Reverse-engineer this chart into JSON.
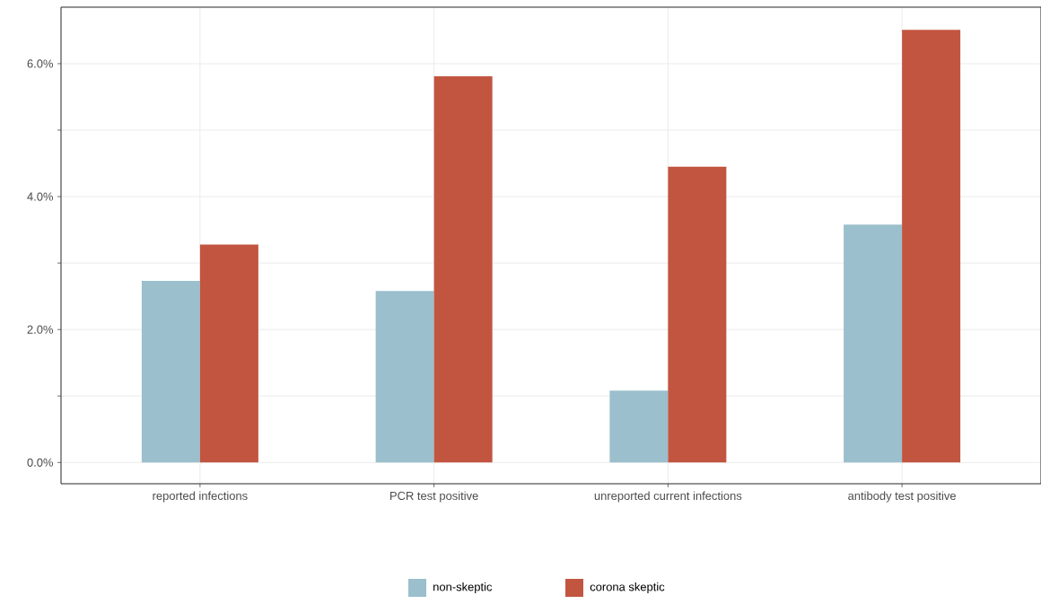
{
  "chart_data": {
    "type": "bar",
    "categories": [
      "reported infections",
      "PCR test positive",
      "unreported current infections",
      "antibody test positive"
    ],
    "series": [
      {
        "name": "non-skeptic",
        "color": "#9bbfcc",
        "values": [
          2.73,
          2.58,
          1.08,
          3.58
        ]
      },
      {
        "name": "corona skeptic",
        "color": "#c25540",
        "values": [
          3.28,
          5.81,
          4.45,
          6.51
        ]
      }
    ],
    "ylim": [
      -0.32,
      6.85
    ],
    "yticks": [
      {
        "value": 0,
        "label": "0.0%"
      },
      {
        "value": 1,
        "label": null
      },
      {
        "value": 2,
        "label": "2.0%"
      },
      {
        "value": 3,
        "label": null
      },
      {
        "value": 4,
        "label": "4.0%"
      },
      {
        "value": 5,
        "label": null
      },
      {
        "value": 6,
        "label": "6.0%"
      }
    ],
    "grid": true,
    "legend": "bottom"
  }
}
